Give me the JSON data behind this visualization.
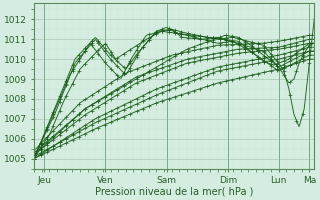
{
  "xlabel": "Pression niveau de la mer( hPa )",
  "bg_color": "#d4ede0",
  "grid_major_color": "#b0cfba",
  "grid_minor_color": "#c8e4d0",
  "line_color": "#1a5c1a",
  "ylim": [
    1004.5,
    1012.8
  ],
  "xlim": [
    0,
    110
  ],
  "xtick_positions": [
    4,
    28,
    52,
    76,
    96,
    108
  ],
  "xtick_labels": [
    "Jeu",
    "Ven",
    "Sam",
    "Dim",
    "Lun",
    "Ma"
  ],
  "ytick_positions": [
    1005,
    1006,
    1007,
    1008,
    1009,
    1010,
    1011,
    1012
  ],
  "ytick_labels": [
    "1005",
    "1006",
    "1007",
    "1008",
    "1009",
    "1010",
    "1011",
    "1012"
  ],
  "marker": "+",
  "markersize": 3,
  "linewidth": 0.7
}
